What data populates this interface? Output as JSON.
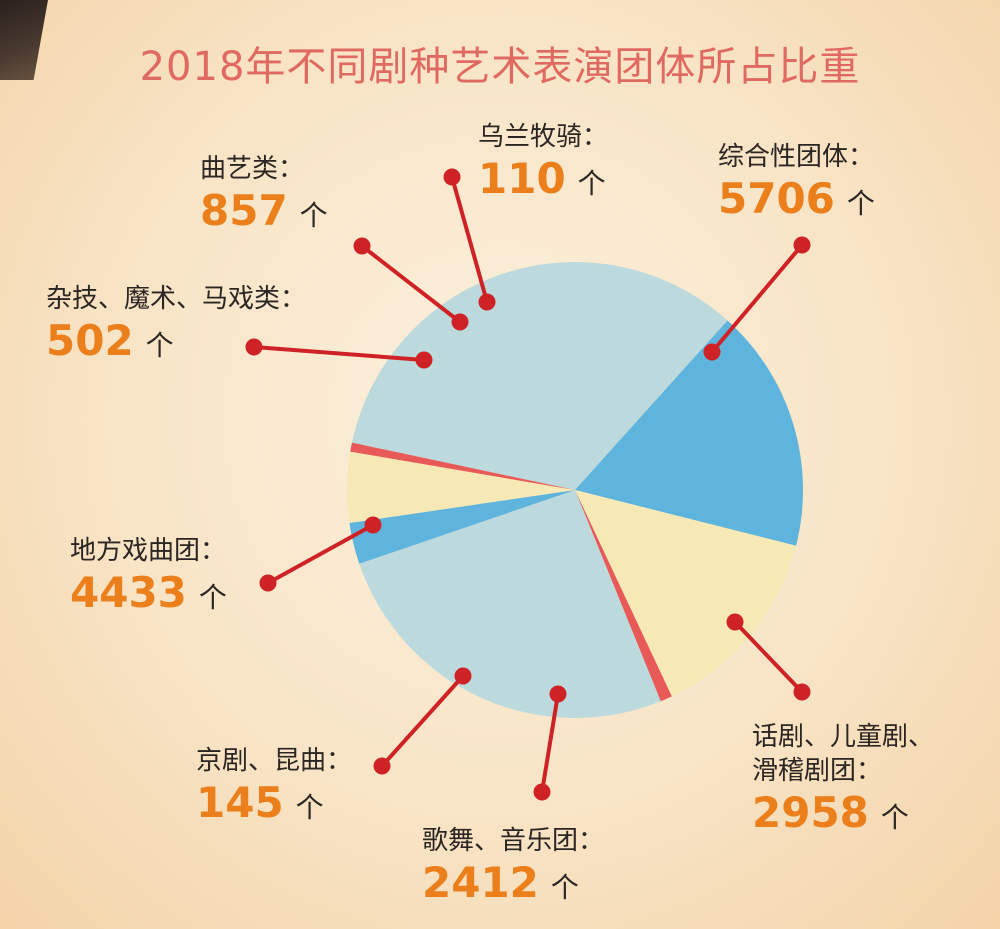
{
  "title": "2018年不同剧种艺术表演团体所占比重",
  "chart_data": {
    "type": "pie",
    "title": "2018年不同剧种艺术表演团体所占比重",
    "unit": "个",
    "colors": {
      "light_blue": "#bcdadd",
      "blue": "#5fb4de",
      "yellow": "#f6e9b6",
      "red": "#e85a58",
      "dot": "#cf2226"
    },
    "slices": [
      {
        "name": "综合性团体：",
        "value": 5706,
        "color": "#bcdadd"
      },
      {
        "name": "话剧、儿童剧、滑稽剧团：",
        "value": 2958,
        "color": "#5fb4de"
      },
      {
        "name": "歌舞、音乐团：",
        "value": 2412,
        "color": "#f6e9b6"
      },
      {
        "name": "京剧、昆曲：",
        "value": 145,
        "color": "#e85a58"
      },
      {
        "name": "地方戏曲团：",
        "value": 4433,
        "color": "#bcdadd"
      },
      {
        "name": "杂技、魔术、马戏类：",
        "value": 502,
        "color": "#5fb4de"
      },
      {
        "name": "曲艺类：",
        "value": 857,
        "color": "#f6e9b6"
      },
      {
        "name": "乌兰牧骑：",
        "value": 110,
        "color": "#e85a58"
      }
    ]
  },
  "labels": [
    {
      "name": "综合性团体：",
      "value": "5706",
      "unit": "个"
    },
    {
      "name": "话剧、儿童剧、",
      "name2": "滑稽剧团：",
      "value": "2958",
      "unit": "个"
    },
    {
      "name": "歌舞、音乐团：",
      "value": "2412",
      "unit": "个"
    },
    {
      "name": "京剧、昆曲：",
      "value": "145",
      "unit": "个"
    },
    {
      "name": "地方戏曲团：",
      "value": "4433",
      "unit": "个"
    },
    {
      "name": "杂技、魔术、马戏类：",
      "value": "502",
      "unit": "个"
    },
    {
      "name": "曲艺类：",
      "value": "857",
      "unit": "个"
    },
    {
      "name": "乌兰牧骑：",
      "value": "110",
      "unit": "个"
    }
  ]
}
